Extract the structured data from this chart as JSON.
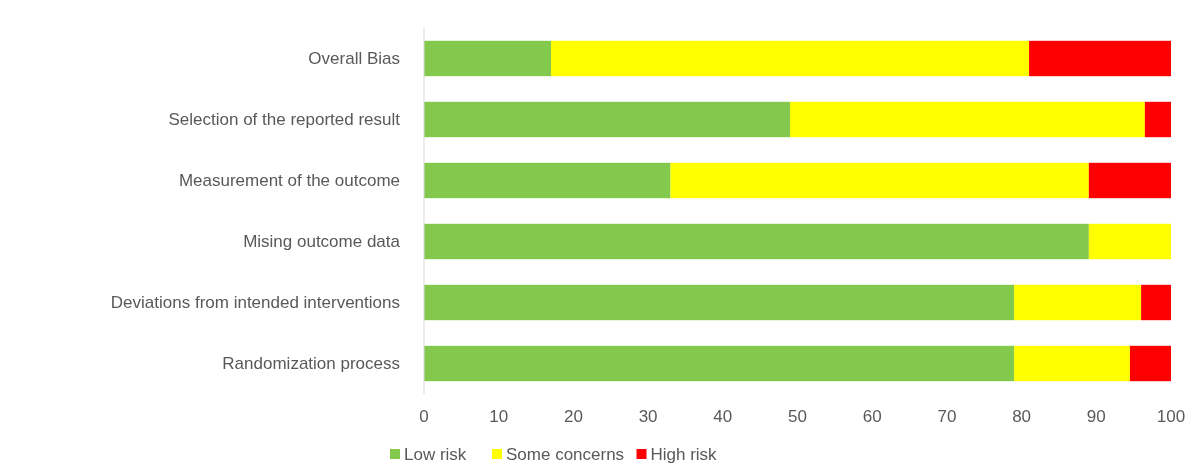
{
  "chart_data": {
    "type": "bar",
    "orientation": "horizontal",
    "stacked": true,
    "categories": [
      "Overall Bias",
      "Selection of the reported result",
      "Measurement of the outcome",
      "Mising outcome data",
      "Deviations from intended interventions",
      "Randomization process"
    ],
    "series": [
      {
        "name": "Low risk",
        "color": "#82c94e",
        "values": [
          17,
          49,
          33,
          89,
          79,
          79
        ]
      },
      {
        "name": "Some concerns",
        "color": "#ffff00",
        "values": [
          64,
          47.5,
          56,
          11,
          17,
          15.5
        ]
      },
      {
        "name": "High risk",
        "color": "#ff0000",
        "values": [
          19,
          3.5,
          11,
          0,
          4,
          5.5
        ]
      }
    ],
    "xlim": [
      0,
      100
    ],
    "xticks": [
      0,
      10,
      20,
      30,
      40,
      50,
      60,
      70,
      80,
      90,
      100
    ],
    "grid": false,
    "legend": "bottom"
  }
}
